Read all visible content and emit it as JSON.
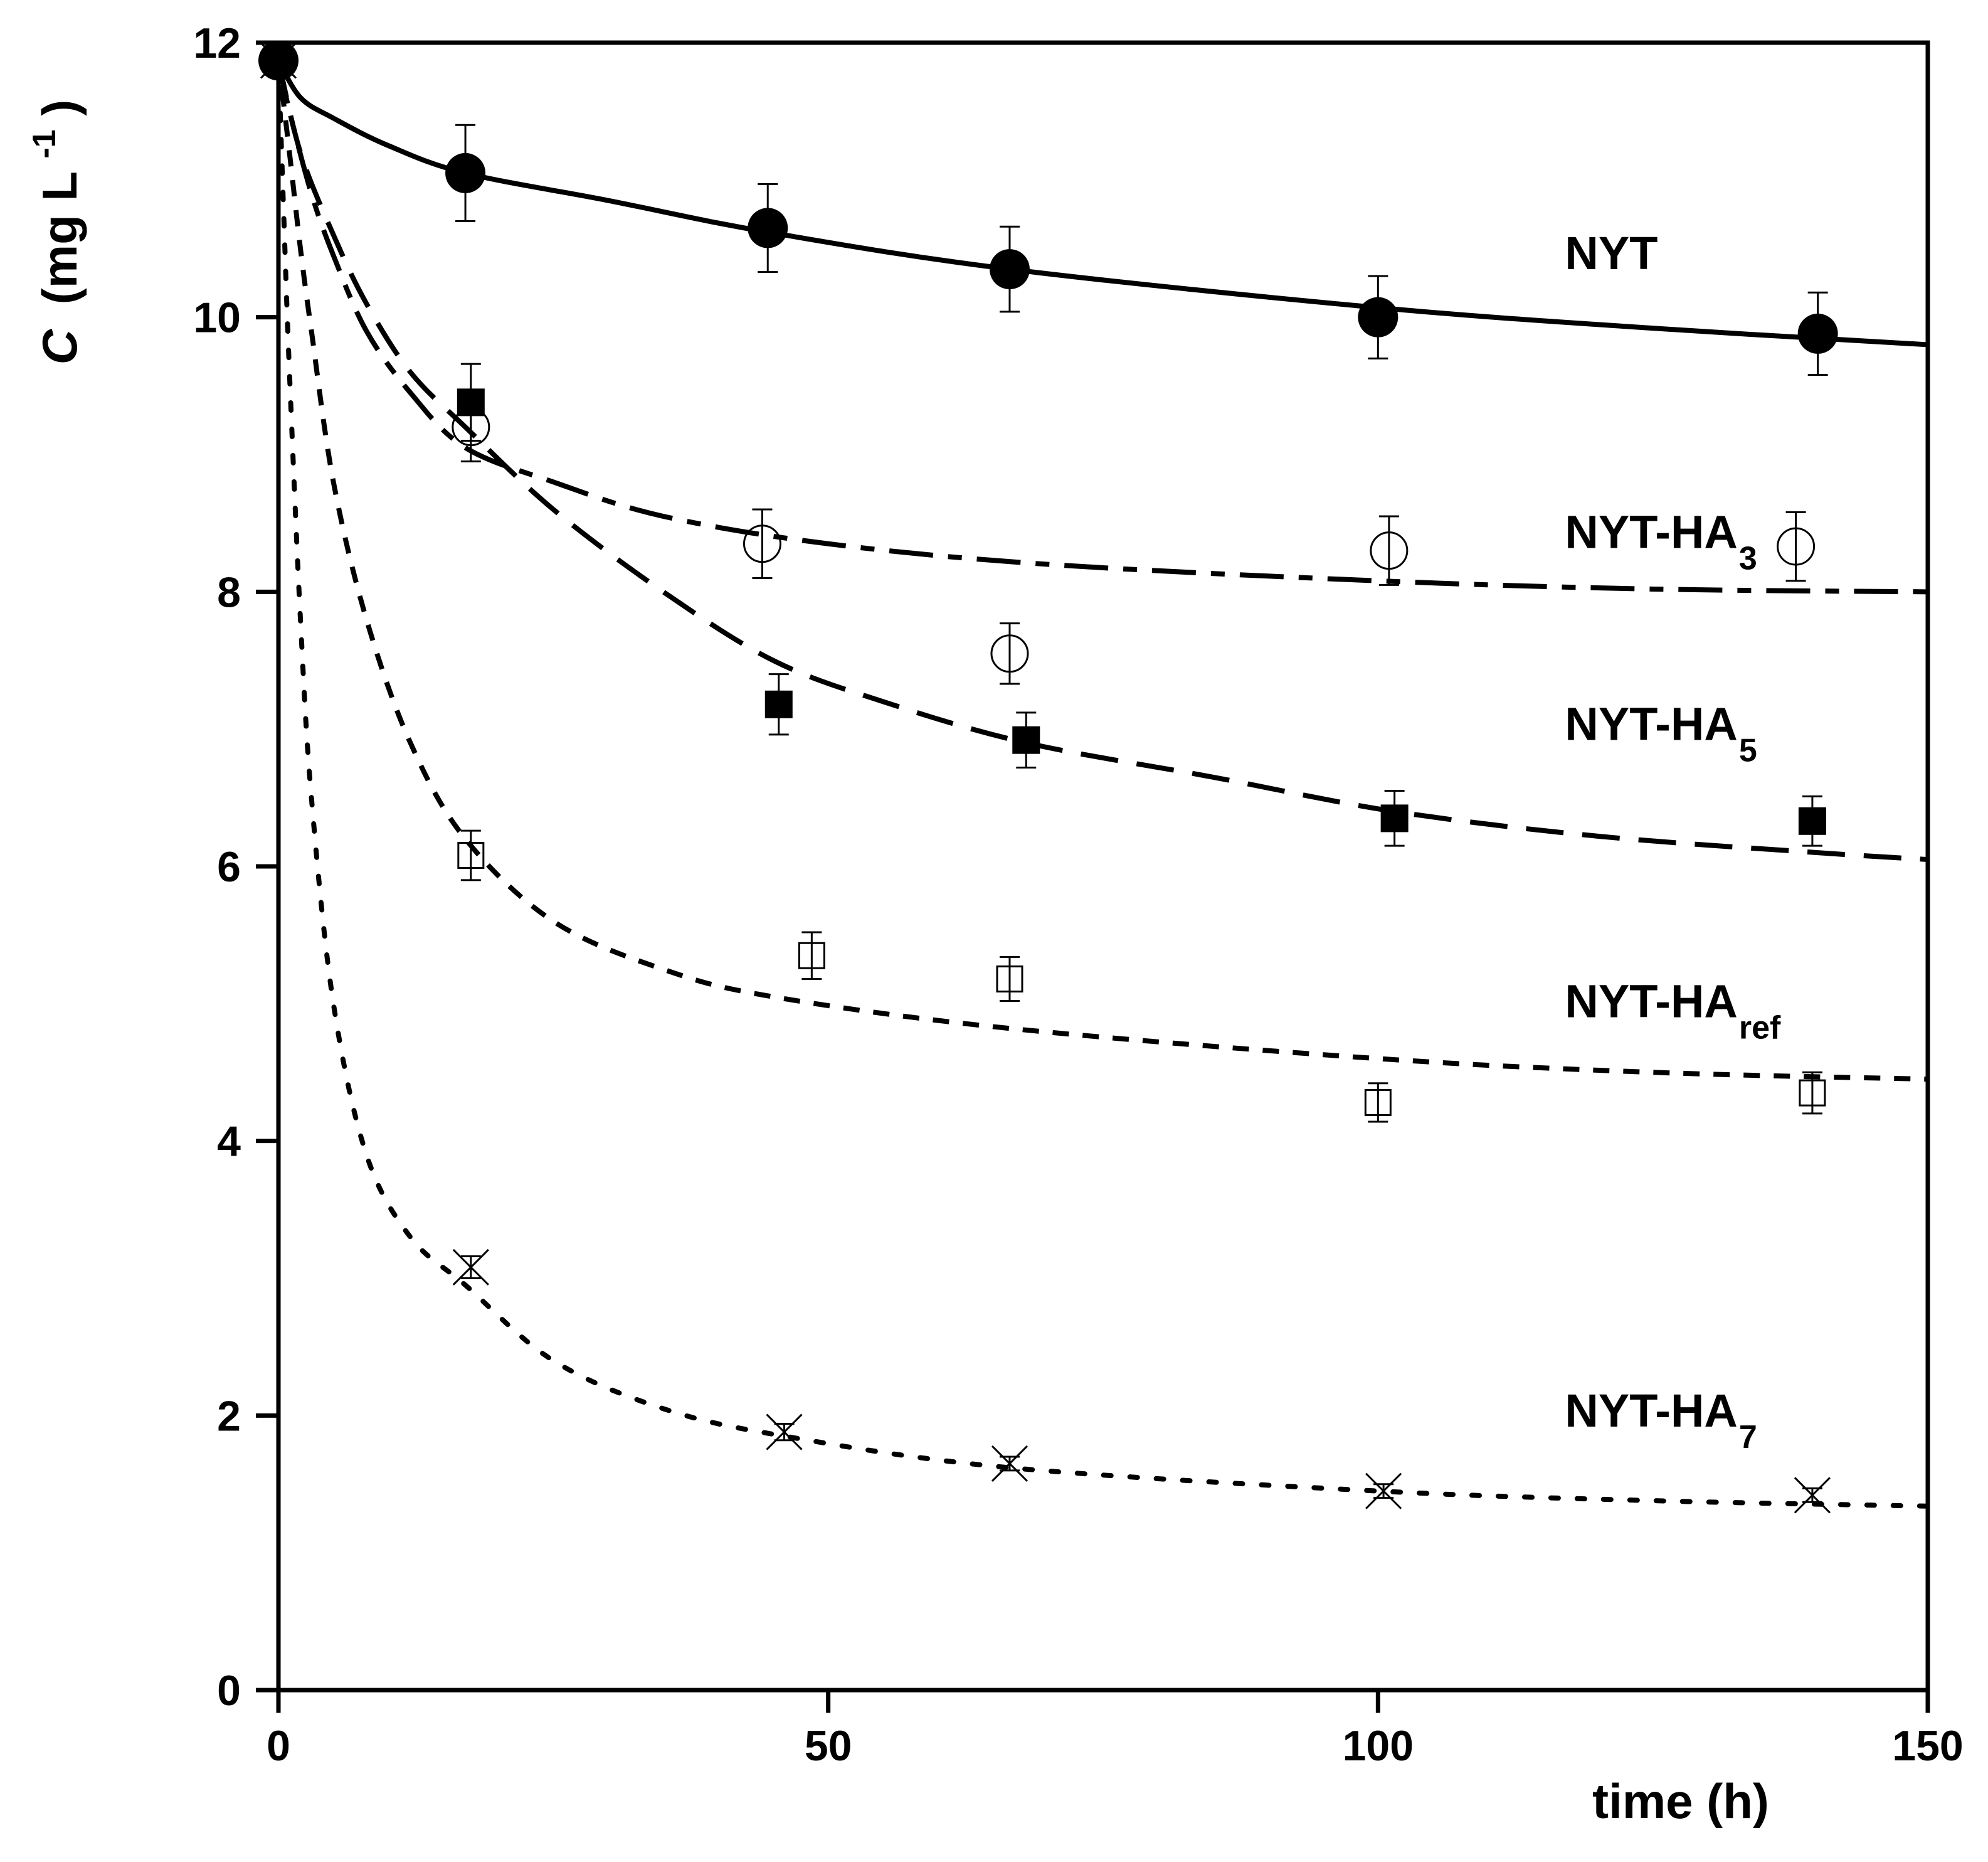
{
  "chart_data": {
    "type": "scatter",
    "title": "",
    "xlabel": "time (h)",
    "ylabel": {
      "italic": "C",
      "unit": "(mg L",
      "exponent": "-1",
      "close": ")"
    },
    "xlim": [
      0,
      150
    ],
    "ylim": [
      0,
      12
    ],
    "x_ticks": [
      "0",
      "50",
      "100",
      "150"
    ],
    "y_ticks": [
      "0",
      "2",
      "4",
      "6",
      "8",
      "10",
      "12"
    ],
    "grid": false,
    "series": [
      {
        "name": "NYT",
        "label": "NYT",
        "sub": "",
        "marker": "filled-circle",
        "line": "solid",
        "color": "#000000",
        "x": [
          0,
          17,
          44.5,
          66.5,
          100,
          140
        ],
        "y": [
          11.87,
          11.05,
          10.65,
          10.35,
          10.0,
          9.88
        ],
        "err": [
          0.05,
          0.35,
          0.32,
          0.31,
          0.3,
          0.3
        ],
        "fit": {
          "x": [
            0,
            2,
            5,
            10,
            17,
            30,
            44.5,
            66.5,
            100,
            125,
            150
          ],
          "y": [
            11.87,
            11.6,
            11.45,
            11.25,
            11.05,
            10.85,
            10.62,
            10.35,
            10.07,
            9.92,
            9.8
          ]
        }
      },
      {
        "name": "NYT-HA3",
        "label": "NYT-HA",
        "sub": "3",
        "marker": "open-circle",
        "line": "dash-long-short",
        "color": "#000000",
        "x": [
          0,
          17.5,
          44,
          66.5,
          101,
          138
        ],
        "y": [
          11.87,
          9.2,
          8.35,
          7.55,
          8.3,
          8.33
        ],
        "err": [
          0.05,
          0.25,
          0.25,
          0.22,
          0.25,
          0.25
        ],
        "fit": {
          "x": [
            0,
            1,
            3,
            5,
            8,
            12,
            17,
            25,
            35,
            50,
            70,
            100,
            125,
            150
          ],
          "y": [
            11.87,
            11.5,
            10.9,
            10.45,
            9.9,
            9.45,
            9.05,
            8.8,
            8.55,
            8.35,
            8.2,
            8.08,
            8.02,
            8.0
          ]
        }
      },
      {
        "name": "NYT-HA5",
        "label": "NYT-HA",
        "sub": "5",
        "marker": "filled-square",
        "line": "long-dash",
        "color": "#000000",
        "x": [
          0,
          17.5,
          45.5,
          68,
          101.5,
          139.5
        ],
        "y": [
          11.87,
          9.38,
          7.18,
          6.92,
          6.35,
          6.33
        ],
        "err": [
          0.05,
          0.28,
          0.22,
          0.2,
          0.2,
          0.18
        ],
        "fit": {
          "x": [
            0,
            2,
            5,
            8,
            12,
            17,
            25,
            35,
            45,
            55,
            68,
            85,
            101.5,
            120,
            140,
            150
          ],
          "y": [
            11.87,
            11.2,
            10.6,
            10.1,
            9.6,
            9.2,
            8.6,
            8.0,
            7.5,
            7.2,
            6.9,
            6.65,
            6.4,
            6.22,
            6.1,
            6.05
          ]
        }
      },
      {
        "name": "NYT-HAref",
        "label": "NYT-HA",
        "sub": "ref",
        "marker": "open-square",
        "line": "short-dash",
        "color": "#000000",
        "x": [
          0,
          17.5,
          48.5,
          66.5,
          100,
          139.5
        ],
        "y": [
          11.87,
          6.08,
          5.35,
          5.18,
          4.28,
          4.35
        ],
        "err": [
          0.05,
          0.18,
          0.17,
          0.16,
          0.14,
          0.15
        ],
        "fit": {
          "x": [
            0,
            1,
            2,
            3,
            5,
            8,
            12,
            17,
            25,
            35,
            45,
            66.5,
            100,
            125,
            150
          ],
          "y": [
            11.87,
            11.2,
            10.5,
            9.9,
            8.8,
            7.8,
            6.9,
            6.2,
            5.6,
            5.25,
            5.05,
            4.82,
            4.6,
            4.5,
            4.45
          ]
        }
      },
      {
        "name": "NYT-HA7",
        "label": "NYT-HA",
        "sub": "7",
        "marker": "cross",
        "line": "dotted",
        "color": "#000000",
        "x": [
          0,
          17.5,
          46,
          66.5,
          100.5,
          139.5
        ],
        "y": [
          11.87,
          3.08,
          1.88,
          1.65,
          1.45,
          1.42
        ],
        "err": [
          0.05,
          0.08,
          0.06,
          0.05,
          0.05,
          0.05
        ],
        "fit": {
          "x": [
            0,
            0.5,
            1,
            2,
            3,
            5,
            8,
            12,
            17,
            25,
            35,
            46,
            66.5,
            100,
            125,
            150
          ],
          "y": [
            11.87,
            10.7,
            9.6,
            7.8,
            6.5,
            5.0,
            3.9,
            3.3,
            2.95,
            2.4,
            2.05,
            1.85,
            1.62,
            1.45,
            1.38,
            1.34
          ]
        }
      }
    ],
    "annotations": [
      {
        "series": "NYT",
        "text": "NYT",
        "x": 117,
        "y": 10.35
      },
      {
        "series": "NYT-HA3",
        "text": "NYT-HA",
        "sub": "3",
        "x": 117,
        "y": 8.32
      },
      {
        "series": "NYT-HA5",
        "text": "NYT-HA",
        "sub": "5",
        "x": 117,
        "y": 6.92
      },
      {
        "series": "NYT-HAref",
        "text": "NYT-HA",
        "sub": "ref",
        "x": 117,
        "y": 4.9
      },
      {
        "series": "NYT-HA7",
        "text": "NYT-HA",
        "sub": "7",
        "x": 117,
        "y": 1.92
      }
    ]
  }
}
